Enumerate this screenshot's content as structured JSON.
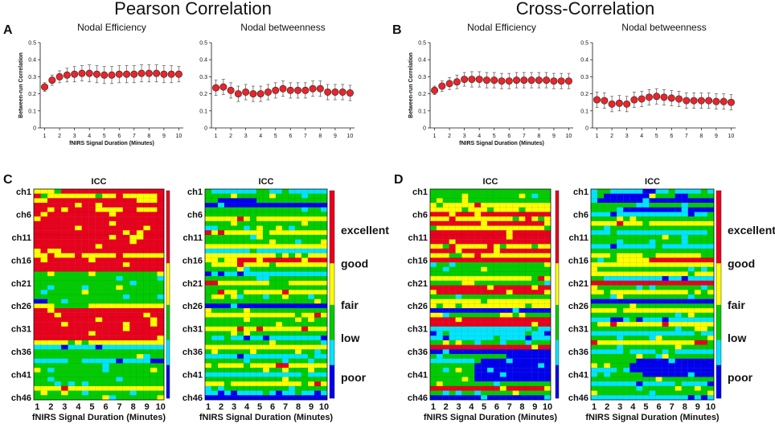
{
  "titles": {
    "left": "Pearson Correlation",
    "right": "Cross-Correlation"
  },
  "panel_letters": [
    "A",
    "B",
    "C",
    "D"
  ],
  "legend": {
    "labels": [
      "excellent",
      "good",
      "fair",
      "low",
      "poor"
    ],
    "colors": {
      "excellent": "#e8001c",
      "good": "#ffff00",
      "fair": "#00cc00",
      "low": "#00e5ff",
      "poor": "#0000ee"
    }
  },
  "colors": {
    "marker": "#e8252a",
    "axis": "#111111"
  },
  "chart_data": [
    {
      "type": "scatter",
      "panel": "A",
      "title": "Nodal Efficiency",
      "xlabel": "fNIRS Signal Duration (Minutes)",
      "ylabel": "Between-run Correlation",
      "xlim": [
        0.7,
        10.3
      ],
      "ylim": [
        0,
        0.5
      ],
      "xticks": [
        "1",
        "2",
        "3",
        "4",
        "5",
        "6",
        "7",
        "8",
        "9",
        "10"
      ],
      "yticks": [
        "0",
        "0.1",
        "0.2",
        "0.3",
        "0.4",
        "0.5"
      ],
      "x": [
        1,
        1.5,
        2,
        2.5,
        3,
        3.5,
        4,
        4.5,
        5,
        5.5,
        6,
        6.5,
        7,
        7.5,
        8,
        8.5,
        9,
        9.5,
        10
      ],
      "values": [
        0.24,
        0.28,
        0.3,
        0.31,
        0.315,
        0.32,
        0.32,
        0.315,
        0.31,
        0.31,
        0.315,
        0.315,
        0.315,
        0.32,
        0.32,
        0.32,
        0.315,
        0.315,
        0.315
      ],
      "errors": [
        0.025,
        0.03,
        0.035,
        0.04,
        0.045,
        0.045,
        0.05,
        0.05,
        0.05,
        0.05,
        0.05,
        0.05,
        0.05,
        0.05,
        0.05,
        0.05,
        0.05,
        0.05,
        0.045
      ]
    },
    {
      "type": "scatter",
      "panel": "A",
      "title": "Nodal betweenness",
      "xlabel": "",
      "ylabel": "",
      "xlim": [
        0.7,
        10.3
      ],
      "ylim": [
        0,
        0.5
      ],
      "xticks": [
        "1",
        "2",
        "3",
        "4",
        "5",
        "6",
        "7",
        "8",
        "9",
        "10"
      ],
      "yticks": [
        "0",
        "0.1",
        "0.2",
        "0.3",
        "0.4",
        "0.5"
      ],
      "x": [
        1,
        1.5,
        2,
        2.5,
        3,
        3.5,
        4,
        4.5,
        5,
        5.5,
        6,
        6.5,
        7,
        7.5,
        8,
        8.5,
        9,
        9.5,
        10
      ],
      "values": [
        0.235,
        0.24,
        0.22,
        0.2,
        0.21,
        0.2,
        0.2,
        0.21,
        0.22,
        0.23,
        0.22,
        0.22,
        0.22,
        0.23,
        0.23,
        0.21,
        0.21,
        0.21,
        0.205
      ],
      "errors": [
        0.045,
        0.045,
        0.045,
        0.045,
        0.045,
        0.045,
        0.045,
        0.045,
        0.045,
        0.045,
        0.045,
        0.045,
        0.045,
        0.045,
        0.045,
        0.045,
        0.045,
        0.045,
        0.045
      ]
    },
    {
      "type": "scatter",
      "panel": "B",
      "title": "Nodal Efficiency",
      "xlabel": "fNIRS Signal Duration (Minutes)",
      "ylabel": "Between-run Correlation",
      "xlim": [
        0.7,
        10.3
      ],
      "ylim": [
        0,
        0.5
      ],
      "xticks": [
        "1",
        "2",
        "3",
        "4",
        "5",
        "6",
        "7",
        "8",
        "9",
        "10"
      ],
      "yticks": [
        "0",
        "0.1",
        "0.2",
        "0.3",
        "0.4",
        "0.5"
      ],
      "x": [
        1,
        1.5,
        2,
        2.5,
        3,
        3.5,
        4,
        4.5,
        5,
        5.5,
        6,
        6.5,
        7,
        7.5,
        8,
        8.5,
        9,
        9.5,
        10
      ],
      "values": [
        0.22,
        0.245,
        0.26,
        0.27,
        0.285,
        0.285,
        0.285,
        0.28,
        0.28,
        0.275,
        0.275,
        0.28,
        0.28,
        0.28,
        0.28,
        0.28,
        0.275,
        0.275,
        0.275
      ],
      "errors": [
        0.025,
        0.03,
        0.035,
        0.04,
        0.04,
        0.045,
        0.045,
        0.045,
        0.045,
        0.045,
        0.045,
        0.045,
        0.045,
        0.045,
        0.045,
        0.045,
        0.045,
        0.045,
        0.045
      ]
    },
    {
      "type": "scatter",
      "panel": "B",
      "title": "Nodal betweenness",
      "xlabel": "",
      "ylabel": "",
      "xlim": [
        0.7,
        10.3
      ],
      "ylim": [
        0,
        0.5
      ],
      "xticks": [
        "1",
        "2",
        "3",
        "4",
        "5",
        "6",
        "7",
        "8",
        "9",
        "10"
      ],
      "yticks": [
        "0",
        "0.1",
        "0.2",
        "0.3",
        "0.4",
        "0.5"
      ],
      "x": [
        1,
        1.5,
        2,
        2.5,
        3,
        3.5,
        4,
        4.5,
        5,
        5.5,
        6,
        6.5,
        7,
        7.5,
        8,
        8.5,
        9,
        9.5,
        10
      ],
      "values": [
        0.165,
        0.16,
        0.14,
        0.145,
        0.14,
        0.165,
        0.17,
        0.18,
        0.185,
        0.18,
        0.175,
        0.17,
        0.16,
        0.16,
        0.16,
        0.16,
        0.155,
        0.155,
        0.15
      ],
      "errors": [
        0.045,
        0.045,
        0.045,
        0.045,
        0.045,
        0.045,
        0.045,
        0.045,
        0.045,
        0.045,
        0.045,
        0.045,
        0.045,
        0.045,
        0.045,
        0.045,
        0.045,
        0.045,
        0.045
      ]
    },
    {
      "type": "heatmap",
      "panel": "C",
      "title": "ICC",
      "xlabel": "fNIRS Signal Duration (Minutes)",
      "xticks": [
        "1",
        "2",
        "3",
        "4",
        "5",
        "6",
        "7",
        "8",
        "9",
        "10"
      ],
      "yticks": [
        "ch1",
        "ch6",
        "ch11",
        "ch16",
        "ch21",
        "ch26",
        "ch31",
        "ch36",
        "ch41",
        "ch46"
      ],
      "columns": 19,
      "rows": 46,
      "categories": [
        "poor",
        "low",
        "fair",
        "good",
        "excellent"
      ],
      "row_profiles": [
        "YYYYRRRRRRRRRRRRRRR",
        "YYYYYYYYYYYYYYYYYYR",
        "YYRRRRRRRRRRRRRYYYR",
        "RRRRRRRRRRRRRRRRRRR",
        "RRYYYRRRRYYYRRRYYYR",
        "RRRRRRRRRRRRRRRRRRR",
        "RRRRRRRRRRRRRRRRRRR",
        "RRRRRRRRRRRRRRRRRRR",
        "RRRRRRRRRRRRRRRRRRR",
        "RRRRRRRRRRRRRRRRRRR",
        "RRRRRRRRRRRRRRRRRRR",
        "RRRRRRRRRRRRRRRRRRR",
        "RRRRRRRRRRRRRRRRRRR",
        "RRRRRRRRRRRRRRRRRRR",
        "YYYYYYYYYYYYYYYYYYY",
        "RRRRRRRRRRRRRRRRRRR",
        "RRRRRRRRRRRRRRRRRRR",
        "RRRRRRRRRRRRRRRRRRR",
        "GGGGGGGGGGGGGGGGGGG",
        "GGGGGGGGGGGGGGGGGGG",
        "GGGGGGGGGGGGGGGGGGG",
        "GGGGGGGGGGGGGGGGGGG",
        "GGGGGGGGGGGGGGGGGGG",
        "GGGGGGGGGGGGGGGGGGG",
        "BBGGGGGGGGGGGGGGGGG",
        "YYYGGGGGYYYYYYYYYYY",
        "RRRRRRRRRRRRRRRRRRR",
        "RRRRRRRRRRRRRRRRRRR",
        "RRRRRRRRRRRRRRRRRRR",
        "RRRRRRRRRRRRRRRRRRR",
        "RRRRRRRRRRRRRRRRRRR",
        "RRRRRRRRRRRRRRRRRRR",
        "RRRRRRRRRRRRRRRRRRR",
        "YYYYYYYYYYYYYYYYYYY",
        "CCCCCCCCCCCCCCCCCCC",
        "GGGGGGGGGGGGGGGGGGG",
        "GGGGGGGGGGGGGGGGGGG",
        "CCCCCCCCCCCCCCCCCCC",
        "GGGGGGGGGGGGGGGGGGG",
        "GGGGGGGGGGGGGGGGGGG",
        "GGGGGGGGGGGGGGGGGGG",
        "GGGGGGGGGGGGGGGGGGG",
        "GGGGGGGGGGGGGGGGGGG",
        "YYYYYYYYYYYYYYYYYYY",
        "GGGGGGGGGGGGGGGGGGG",
        "GGGGGGGGGGGGGGGGGGG"
      ],
      "seed": 11
    },
    {
      "type": "heatmap",
      "panel": "C",
      "title": "ICC",
      "xlabel": "fNIRS Signal Duration (Minutes)",
      "xticks": [
        "1",
        "2",
        "3",
        "4",
        "5",
        "6",
        "7",
        "8",
        "9",
        "10"
      ],
      "yticks": [
        "ch1",
        "ch6",
        "ch11",
        "ch16",
        "ch21",
        "ch26",
        "ch31",
        "ch36",
        "ch41",
        "ch46"
      ],
      "columns": 19,
      "rows": 46,
      "categories": [
        "poor",
        "low",
        "fair",
        "good",
        "excellent"
      ],
      "row_profiles": [
        "CCCCCCCCCCCCCCCCCCC",
        "GGGGGGGGGGGGGGGGGGG",
        "GGBBBBBBGGGGGGGGGGG",
        "BBBBBBBBBBBBBBBBBBB",
        "GGGGGGGGGGGGGGGGGGG",
        "GGGGGGGGGGGGGGGGGGG",
        "YYYYYYYYYYYYYYYYYYY",
        "GGGGGGGGGGGGGGGGGGG",
        "GGGGGGGGGGGGGGGGGGG",
        "YYYYYYYYYYYYYYYYYYY",
        "GGGGGGGGGGGGGGGGGGG",
        "GGGGGGGGGGGGGGGGGGG",
        "YYYYYYYYYYYYYYYYYYY",
        "CCCCCCCCCCCCCCCCCCC",
        "YYYYYYYYYYYYYYYYYYY",
        "YYYYYRRRRRRRRRRRRRR",
        "YYYYYYYYYYYYYYYYYYY",
        "GGGGGGGGGGGGGGGGGGG",
        "CCCCCCCCCCCCCCCCCCC",
        "GGGGGGGGGGGGGGGGGGG",
        "RRRYYYYYYYYYYYYYYYY",
        "GGGGGGGGGGGGGGGGGGG",
        "YYYYYYYYYYYYYYYYYYY",
        "GGGGGGGGGGGGGGGGGGG",
        "GGGGGGGGGGGGGGGGGGG",
        "BBBBBBBBBBBBBBBBBBB",
        "GGGGGGGGGGGGGGGGGGG",
        "YYYYYYYYYYYYYYYYYYY",
        "GGGGGGGGGGGGGGGGGGG",
        "GGGGGGGGGGGGGGGGGGG",
        "YYYYYYYYYYYYYYYYYYY",
        "GGGGGGGGGGGGGGGGGGG",
        "CCCCCCCCCCCCCCCCCCC",
        "GGGGGGGGGGGGGGGGGGG",
        "YYYYYYYYYYYYYYYYYYY",
        "GGGGGGGGGGGGGGGGGGG",
        "CCCCCCCCCCCCCCCCCCC",
        "GGGGGGGGGGGGGGGGGGG",
        "YYYYYYYYYYYYYYYYYYY",
        "GGGGGGGGGGGGGGGGGGG",
        "CCCCCCCCCCCCCCCCCCC",
        "GGGGGGGGGGGGGGGGGGG",
        "YYYYYYYYYYYYYYYYYYY",
        "GGGGGGGGGGGGGGGGGGG",
        "CCCCCCCCCCCCCCCCCCC",
        "BBBBBBBBBBBBBBBBBBB"
      ],
      "seed": 23
    },
    {
      "type": "heatmap",
      "panel": "D",
      "title": "ICC",
      "xlabel": "fNIRS Signal Duration (Minutes)",
      "xticks": [
        "1",
        "2",
        "3",
        "4",
        "5",
        "6",
        "7",
        "8",
        "9",
        "10"
      ],
      "yticks": [
        "ch1",
        "ch6",
        "ch11",
        "ch16",
        "ch21",
        "ch26",
        "ch31",
        "ch36",
        "ch41",
        "ch46"
      ],
      "columns": 19,
      "rows": 46,
      "categories": [
        "poor",
        "low",
        "fair",
        "good",
        "excellent"
      ],
      "row_profiles": [
        "GGGGGGGGGGGGGGGGGGG",
        "GGGGGGGGGGGGGGGGGGG",
        "GGGGGGGGGGGGGGGGGGG",
        "YYYYYYYYYYYYYYYYYYY",
        "YYYYYYYYYYYYYYYYYYY",
        "RRRRRRRRRRRRRRRRRRR",
        "YYYYYYYYYYYYYYYYYYY",
        "RRRRRRRRRRRRRRRRRRR",
        "YYYYYYYYYYYYYYYYYYY",
        "RRRRRRRRRRRRRRRRRRR",
        "RRRRRRRRRRRRRRRRRRR",
        "RRRRRRRRRRRRRRRRRRR",
        "YYYYYYYYYYYYYYYYYYY",
        "RRRRRRRRRRRRRRRRRRR",
        "YYYYYYYYYYYYYYYYYYY",
        "RRRRRRRRRRRRRRRRRRR",
        "GGGGGGGGGGGGGGGGGGG",
        "GGGGGGGGGGGGGGGGGGG",
        "GGGGGGGGGGGGGGGGGGG",
        "YYYYYYYYYYYYYYYYYYY",
        "GGGGGGGGGGGGGGGGGGG",
        "RRRRRRRRRRRRRRRRRRR",
        "RRRRRRRRRRRRRRRRRRR",
        "GGGGGGGGGGGGGGGGGGG",
        "YYYYYYYYYYYYYYYYYYY",
        "YYYYYYYYYYYYYYYYYYY",
        "BBBBBBBBBBBBBBBBBBB",
        "GGGGGGGGGGGGGGGGGGG",
        "RRRRRRRRRRRRRRRRRRR",
        "RRRRRRRRRRRRRRRRRRR",
        "CCCCCCCCCCCCCCCCCCC",
        "CCCCCCCCCCCCCCCCCCC",
        "CCCCCCCCCCCCCCCCCCC",
        "GGGGGGGGGGGGGGGGGGG",
        "RRRRRRRRRRRRRRRRRRR",
        "BBBBBBBBBBBBBBBBBBB",
        "GGGGGGGGGGGGBBBBBBB",
        "CCCCCCCCBBBBBBBBBBB",
        "GGGGGGGBBBBBBBBBBBB",
        "GGGGGGGBBBBBBBBBBBB",
        "GGGGGGGBBBBBBBBBBBB",
        "GGGGGGGBBBBBBBBBBBB",
        "GGGGGGGGGGGGGGGGGGG",
        "RRRRRRRRRRRRRRRRRRR",
        "GGGGGGGGGGGGGGGGGGG",
        "BBBBBBBBBBBBBBBBBBB"
      ],
      "seed": 37
    },
    {
      "type": "heatmap",
      "panel": "D",
      "title": "ICC",
      "xlabel": "fNIRS Signal Duration (Minutes)",
      "xticks": [
        "1",
        "2",
        "3",
        "4",
        "5",
        "6",
        "7",
        "8",
        "9",
        "10"
      ],
      "yticks": [
        "ch1",
        "ch6",
        "ch11",
        "ch16",
        "ch21",
        "ch26",
        "ch31",
        "ch36",
        "ch41",
        "ch46"
      ],
      "columns": 19,
      "rows": 46,
      "categories": [
        "poor",
        "low",
        "fair",
        "good",
        "excellent"
      ],
      "row_profiles": [
        "CCCCCCCCCCCCCCCCCCC",
        "GGBBBBBBBGGGGBBGGGG",
        "BBBBBBBBBBBBBBBBBBB",
        "GGGGGGGGGGGGGGGGGGG",
        "GGGGGBBBBBBBBBBBBBB",
        "CCCCCCCCCCCCCCCCCCC",
        "GGGGGGGGGGGGGGGGGGG",
        "YYYYYYYYYYYYYYYYYYY",
        "GGGGGGGGGGGGGGGGGGG",
        "CCCCCCCCCCCCCCCCCCC",
        "GGGGGGGGGGGGGGGGGGG",
        "GGGGGGGGGGGGGGGGGGG",
        "CCCCCCCCCCCCCCCCCCC",
        "GGGGGGGGGGGGGGGGGGG",
        "YYYYYYYYYYYYYYYYYYY",
        "GGGGGGYYYRRRRRRRRRR",
        "YYYYYYYYYYYYYYYYYYY",
        "GGGGGGGGGGGGGGGGGGG",
        "YYYYYYYYYYYYYYYYYYY",
        "CCCCCCCCCCCCCCCCCCC",
        "RRRRRRRRRRRRRRRRRRR",
        "GGGGGGGGGGGGGGGGGGG",
        "YYYYYYYYYYYYYYYYYYY",
        "GGGGGGGGGGGGGGGGGGG",
        "BBBBBBBBBBBBBBBBBBB",
        "GGGGGGGGGGGGGGGGGGG",
        "YYYYYYYYYYYYYYYYYYY",
        "GGGGGGGGGGGGGGGGGGG",
        "CCCCCCCCCCCCCCCCCCC",
        "YYYYYYYYYYYYYYYYYYY",
        "GGGGGGGGGGGGGGGGGGG",
        "CCCCCCCCCCCCCCCCCCC",
        "GGGGGGGGGGGGGGGGGGG",
        "YYYYYYYYYYYYYYYYYYY",
        "GGGGGGGGGGGGGGGGGGG",
        "CCCCCCCCCCCCCCCCCCC",
        "GGGGGGGGGGGGGGGGGGG",
        "GGGGGGGBBBBBBBBBBBB",
        "GGGGGGBBBBBBBBBBBBB",
        "CCCCCCBBBBBBBBBBBBB",
        "GGGGGGGGBBBBBBBBBBB",
        "GGGGGGGGGGGGGGGGGGG",
        "CCCCCCCCCCCCCCCCCCC",
        "GGGGGGGGGGGGGGGGGGG",
        "GGGGGGGGGGGGGGGGGGG",
        "CCCCCCCCCCCCCCCCCCC"
      ],
      "seed": 53
    }
  ]
}
